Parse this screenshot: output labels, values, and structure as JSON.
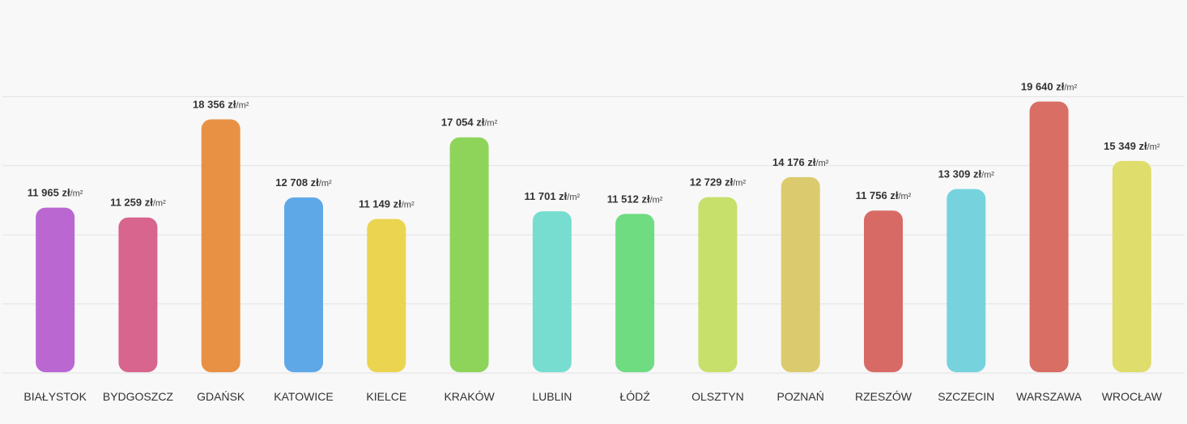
{
  "chart_data": {
    "type": "bar",
    "title": "",
    "xlabel": "",
    "ylabel": "",
    "ylim": [
      0,
      25000
    ],
    "grid": true,
    "unit_label": "/m²",
    "categories": [
      "BIAŁYSTOK",
      "BYDGOSZCZ",
      "GDAŃSK",
      "KATOWICE",
      "KIELCE",
      "KRAKÓW",
      "LUBLIN",
      "ŁÓDŹ",
      "OLSZTYN",
      "POZNAŃ",
      "RZESZÓW",
      "SZCZECIN",
      "WARSZAWA",
      "WROCŁAW"
    ],
    "values": [
      11965,
      11259,
      18356,
      12708,
      11149,
      17054,
      11701,
      11512,
      12729,
      14176,
      11756,
      13309,
      19640,
      15349
    ],
    "value_labels": [
      "11 965 zł",
      "11 259 zł",
      "18 356 zł",
      "12 708 zł",
      "11 149 zł",
      "17 054 zł",
      "11 701 zł",
      "11 512 zł",
      "12 729 zł",
      "14 176 zł",
      "11 756 zł",
      "13 309 zł",
      "19 640 zł",
      "15 349 zł"
    ],
    "colors": [
      "#bb67d2",
      "#d7658e",
      "#e89145",
      "#5fa8e8",
      "#ebd44f",
      "#8fd45a",
      "#77ddd0",
      "#6fdc82",
      "#c7df6b",
      "#dccb6e",
      "#d86a66",
      "#76d3de",
      "#d86e64",
      "#dfdd6c"
    ]
  }
}
